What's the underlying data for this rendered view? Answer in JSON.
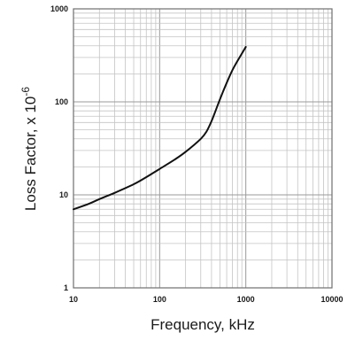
{
  "chart_data": {
    "type": "line",
    "title": "",
    "xlabel": "Frequency, kHz",
    "ylabel_main": "Loss Factor, x 10",
    "ylabel_exponent": "-6",
    "x_scale": "log",
    "y_scale": "log",
    "xlim": [
      10,
      10000
    ],
    "ylim": [
      1,
      1000
    ],
    "x_ticks": [
      "10",
      "100",
      "1000",
      "10000"
    ],
    "y_ticks": [
      "1",
      "10",
      "100",
      "1000"
    ],
    "grid": true,
    "line_color": "#111111",
    "series": [
      {
        "x": [
          10,
          15,
          20,
          30,
          50,
          70,
          100,
          150,
          200,
          300,
          350,
          400,
          450,
          500,
          600,
          700,
          800,
          1000
        ],
        "y": [
          7,
          8,
          9,
          10.5,
          13,
          15.5,
          19,
          24,
          29,
          40,
          48,
          62,
          82,
          106,
          160,
          220,
          275,
          390
        ]
      }
    ]
  }
}
